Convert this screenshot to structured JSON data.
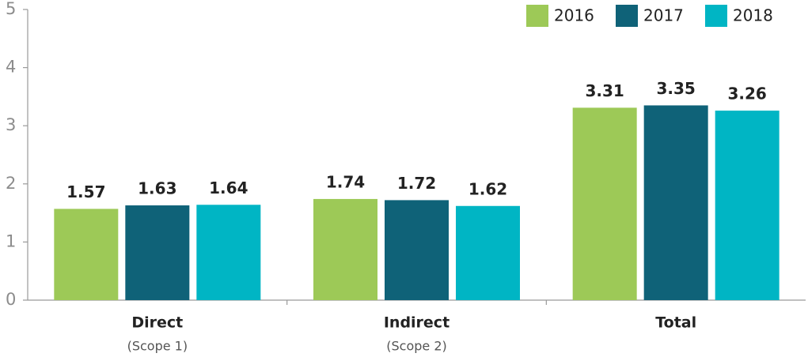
{
  "chart_data": {
    "type": "bar",
    "categories": [
      "Direct",
      "Indirect",
      "Total"
    ],
    "category_notes": [
      "(Scope 1)",
      "(Scope 2)",
      null
    ],
    "series": [
      {
        "name": "2016",
        "color": "#9dc957",
        "values": [
          1.57,
          1.74,
          3.31
        ]
      },
      {
        "name": "2017",
        "color": "#0f6278",
        "values": [
          1.63,
          1.72,
          3.35
        ]
      },
      {
        "name": "2018",
        "color": "#00b5c4",
        "values": [
          1.64,
          1.62,
          3.26
        ]
      }
    ],
    "ylim": [
      0,
      5
    ],
    "yticks": [
      0,
      1,
      2,
      3,
      4,
      5
    ],
    "legend": "top-right"
  }
}
